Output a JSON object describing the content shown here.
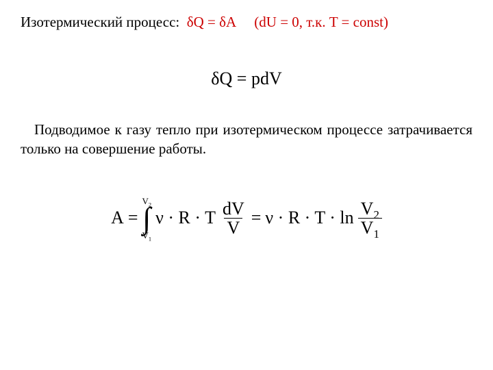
{
  "header": {
    "label": "Изотермический процесс:",
    "formula": "δQ = δA",
    "note": "(dU = 0, т.к. T = const)",
    "label_color": "#000000",
    "formula_color": "#cc0000",
    "note_color": "#cc0000",
    "fontsize": 21
  },
  "eq1": {
    "text": "δQ = pdV",
    "fontsize": 26,
    "color": "#000000"
  },
  "body": {
    "text": "Подводимое к газу тепло при изотермическом процессе затрачивается только на совершение работы.",
    "fontsize": 21,
    "color": "#000000",
    "align": "justify"
  },
  "eq2": {
    "lhs": "A",
    "int_lower": "V",
    "int_lower_sub": "1",
    "int_upper": "V",
    "int_upper_sub": "2",
    "integrand_coeff": "ν · R · T",
    "integrand_frac_num": "dV",
    "integrand_frac_den": "V",
    "rhs_coeff": "ν · R · T · ln",
    "rhs_frac_num": "V",
    "rhs_frac_num_sub": "2",
    "rhs_frac_den": "V",
    "rhs_frac_den_sub": "1",
    "fontsize": 26,
    "color": "#000000"
  },
  "page_background": "#ffffff",
  "font_family": "Times New Roman"
}
